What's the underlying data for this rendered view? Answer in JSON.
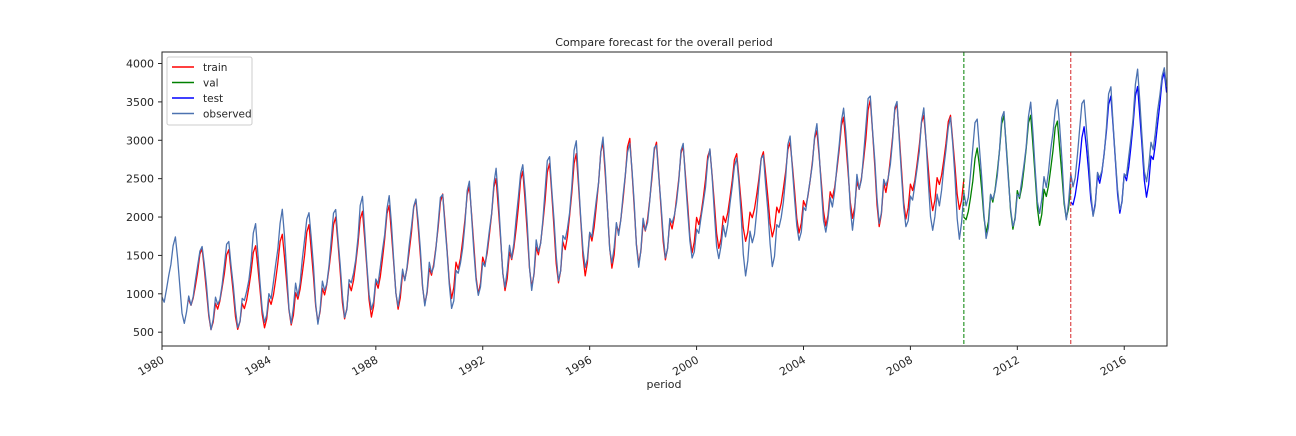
{
  "chart_data": {
    "type": "line",
    "title": "Compare forecast for the overall period",
    "xlabel": "period",
    "ylabel": "",
    "xlim": [
      1980.0,
      2017.6
    ],
    "ylim": [
      320,
      4150
    ],
    "grid": false,
    "legend_placement": "top-left",
    "x_ticks": [
      1980,
      1984,
      1988,
      1992,
      1996,
      2000,
      2004,
      2008,
      2012,
      2016
    ],
    "x_tick_labels": [
      "1980",
      "1984",
      "1988",
      "1992",
      "1996",
      "2000",
      "2004",
      "2008",
      "2012",
      "2016"
    ],
    "y_ticks": [
      500,
      1000,
      1500,
      2000,
      2500,
      3000,
      3500,
      4000
    ],
    "y_tick_labels": [
      "500",
      "1000",
      "1500",
      "2000",
      "2500",
      "3000",
      "3500",
      "4000"
    ],
    "vlines": [
      {
        "x": 2010.0,
        "color": "#008000"
      },
      {
        "x": 2014.0,
        "color": "#d62728"
      }
    ],
    "series": [
      {
        "name": "train",
        "color": "#ff0000",
        "anchors": [
          [
            1981,
            600,
            1580
          ],
          [
            1982,
            520,
            1600
          ],
          [
            1983,
            540,
            1550
          ],
          [
            1984,
            560,
            1700
          ],
          [
            1985,
            600,
            1850
          ],
          [
            1986,
            640,
            1950
          ],
          [
            1987,
            680,
            2050
          ],
          [
            1988,
            700,
            2100
          ],
          [
            1989,
            820,
            2200
          ],
          [
            1990,
            880,
            2250
          ],
          [
            1991,
            950,
            2350
          ],
          [
            1992,
            1000,
            2450
          ],
          [
            1993,
            1050,
            2550
          ],
          [
            1994,
            1100,
            2650
          ],
          [
            1995,
            1150,
            2750
          ],
          [
            1996,
            1250,
            2900
          ],
          [
            1997,
            1350,
            3050
          ],
          [
            1998,
            1400,
            3000
          ],
          [
            1999,
            1450,
            2950
          ],
          [
            2000,
            1550,
            2900
          ],
          [
            2001,
            1600,
            2850
          ],
          [
            2002,
            1700,
            2800
          ],
          [
            2003,
            1750,
            2900
          ],
          [
            2004,
            1800,
            3050
          ],
          [
            2005,
            1900,
            3200
          ],
          [
            2006,
            2000,
            3400
          ],
          [
            2007,
            1850,
            3650
          ],
          [
            2008,
            2000,
            3300
          ],
          [
            2009,
            2100,
            3350
          ],
          [
            2010,
            2100,
            3300
          ]
        ]
      },
      {
        "name": "val",
        "color": "#008000",
        "anchors": [
          [
            2010,
            1750,
            2500
          ],
          [
            2011,
            1800,
            3300
          ],
          [
            2012,
            1850,
            3350
          ],
          [
            2013,
            1900,
            3300
          ],
          [
            2014,
            2000,
            3200
          ]
        ]
      },
      {
        "name": "test",
        "color": "#0000ff",
        "anchors": [
          [
            2014,
            1900,
            2800
          ],
          [
            2015,
            2050,
            3550
          ],
          [
            2016,
            2050,
            3600
          ],
          [
            2017,
            2300,
            3800
          ],
          [
            2017.6,
            2850,
            3900
          ]
        ]
      },
      {
        "name": "observed",
        "color": "#4c72b0",
        "anchors": [
          [
            1980,
            600,
            1800
          ],
          [
            1981,
            620,
            1650
          ],
          [
            1982,
            560,
            1650
          ],
          [
            1983,
            560,
            1750
          ],
          [
            1984,
            580,
            2000
          ],
          [
            1985,
            620,
            2150
          ],
          [
            1986,
            660,
            2050
          ],
          [
            1987,
            700,
            2200
          ],
          [
            1988,
            750,
            2250
          ],
          [
            1989,
            850,
            2250
          ],
          [
            1990,
            900,
            2300
          ],
          [
            1991,
            800,
            2350
          ],
          [
            1992,
            950,
            2500
          ],
          [
            1993,
            1100,
            2700
          ],
          [
            1994,
            1100,
            2750
          ],
          [
            1995,
            1200,
            2900
          ],
          [
            1996,
            1300,
            3000
          ],
          [
            1997,
            1400,
            3000
          ],
          [
            1998,
            1400,
            3000
          ],
          [
            1999,
            1500,
            2950
          ],
          [
            2000,
            1400,
            2900
          ],
          [
            2001,
            1450,
            2800
          ],
          [
            2002,
            1250,
            2800
          ],
          [
            2003,
            1400,
            2900
          ],
          [
            2004,
            1700,
            3150
          ],
          [
            2005,
            1800,
            3200
          ],
          [
            2006,
            1900,
            3700
          ],
          [
            2007,
            1950,
            3550
          ],
          [
            2008,
            1800,
            3400
          ],
          [
            2009,
            1800,
            3350
          ],
          [
            2010,
            1750,
            3300
          ],
          [
            2011,
            1750,
            3350
          ],
          [
            2012,
            1850,
            3350
          ],
          [
            2013,
            2050,
            3550
          ],
          [
            2014,
            2000,
            3550
          ],
          [
            2015,
            2050,
            3600
          ],
          [
            2016,
            2050,
            3750
          ],
          [
            2017,
            2500,
            4000
          ],
          [
            2017.6,
            2850,
            3950
          ]
        ]
      }
    ]
  }
}
